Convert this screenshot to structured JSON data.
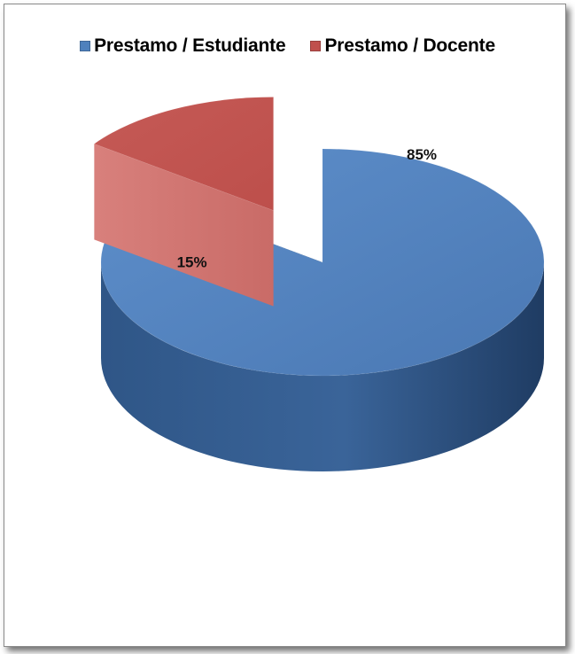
{
  "chart_data": {
    "type": "pie",
    "style": "3d-exploded",
    "legend_position": "top",
    "series": [
      {
        "name": "Prestamo / Estudiante",
        "value": 85,
        "label": "85%",
        "color": "#4F81BD"
      },
      {
        "name": "Prestamo / Docente",
        "value": 15,
        "label": "15%",
        "color": "#C0504D"
      }
    ]
  }
}
